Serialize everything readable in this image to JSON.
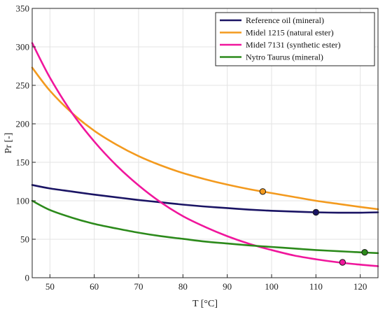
{
  "chart_data": {
    "type": "line",
    "title": "",
    "xlabel": "T [°C]",
    "ylabel": "Pr [-]",
    "xlim": [
      46,
      124
    ],
    "ylim": [
      0,
      350
    ],
    "xticks": [
      50,
      60,
      70,
      80,
      90,
      100,
      110,
      120
    ],
    "yticks": [
      0,
      50,
      100,
      150,
      200,
      250,
      300,
      350
    ],
    "grid": true,
    "legend_position": "top-right",
    "series": [
      {
        "name": "Reference oil (mineral)",
        "color": "#1a1464",
        "x": [
          46,
          50,
          55,
          60,
          65,
          70,
          75,
          80,
          85,
          90,
          95,
          100,
          105,
          110,
          115,
          120,
          124
        ],
        "y": [
          120.5,
          116,
          112,
          108,
          104.5,
          101,
          98,
          95,
          92.5,
          90.5,
          88.5,
          87,
          86,
          85,
          84.5,
          84.5,
          85
        ],
        "marker": {
          "x": 110,
          "y": 85
        }
      },
      {
        "name": "Midel 1215 (natural ester)",
        "color": "#f39a1e",
        "x": [
          46,
          50,
          55,
          60,
          65,
          70,
          75,
          80,
          85,
          90,
          95,
          100,
          105,
          110,
          115,
          120,
          124
        ],
        "y": [
          273,
          243,
          214,
          191,
          173,
          158,
          146,
          136,
          128,
          121,
          115,
          110,
          105,
          100,
          96,
          92,
          89
        ],
        "marker": {
          "x": 98,
          "y": 112
        }
      },
      {
        "name": "Midel 7131 (synthetic ester)",
        "color": "#f0169c",
        "x": [
          46,
          50,
          55,
          60,
          65,
          70,
          75,
          80,
          85,
          90,
          95,
          100,
          105,
          110,
          115,
          120,
          124
        ],
        "y": [
          305,
          260,
          214,
          177,
          146,
          120,
          98,
          80,
          66,
          54,
          44,
          36,
          29,
          24,
          20,
          17,
          15
        ],
        "marker": {
          "x": 116,
          "y": 20
        }
      },
      {
        "name": "Nytro Taurus (mineral)",
        "color": "#2c8a1b",
        "x": [
          46,
          50,
          55,
          60,
          65,
          70,
          75,
          80,
          85,
          90,
          95,
          100,
          105,
          110,
          115,
          120,
          124
        ],
        "y": [
          100,
          88,
          78,
          70,
          64,
          58.5,
          54,
          50.5,
          47,
          44.5,
          42,
          40,
          38,
          36,
          34.5,
          33,
          32
        ],
        "marker": {
          "x": 121,
          "y": 33
        }
      }
    ]
  }
}
